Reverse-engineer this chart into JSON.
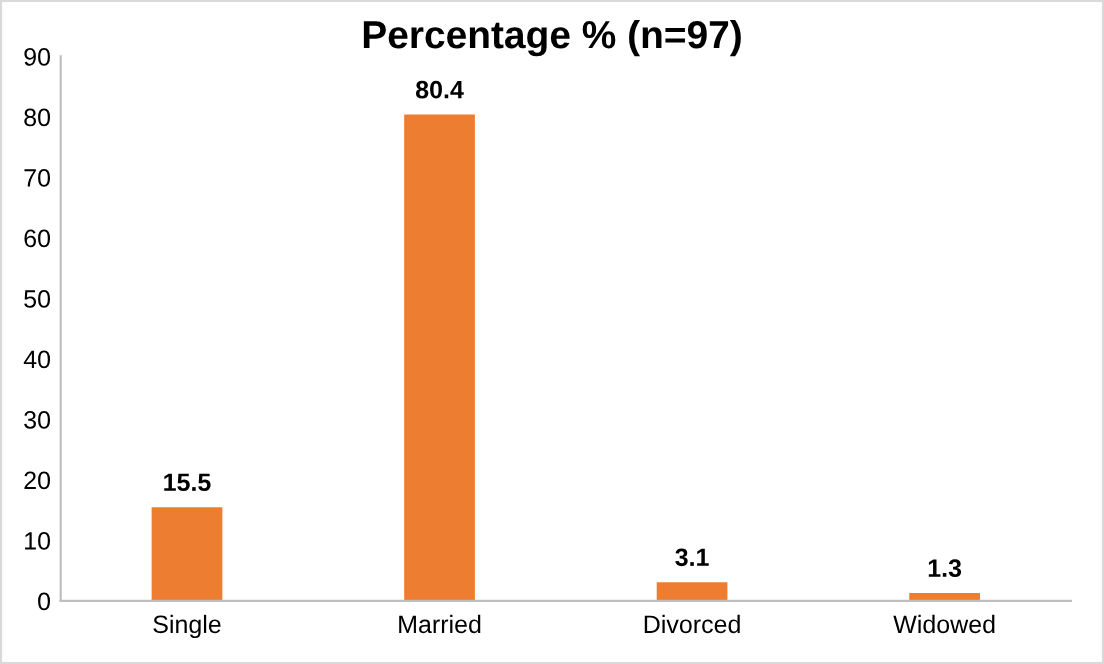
{
  "chart_data": {
    "type": "bar",
    "title": "Percentage % (n=97)",
    "categories": [
      "Single",
      "Married",
      "Divorced",
      "Widowed"
    ],
    "values": [
      15.5,
      80.4,
      3.1,
      1.3
    ],
    "color": "#ed7d31",
    "ylim": [
      0,
      90
    ],
    "yticks": [
      0,
      10,
      20,
      30,
      40,
      50,
      60,
      70,
      80,
      90
    ],
    "data_labels": true
  }
}
